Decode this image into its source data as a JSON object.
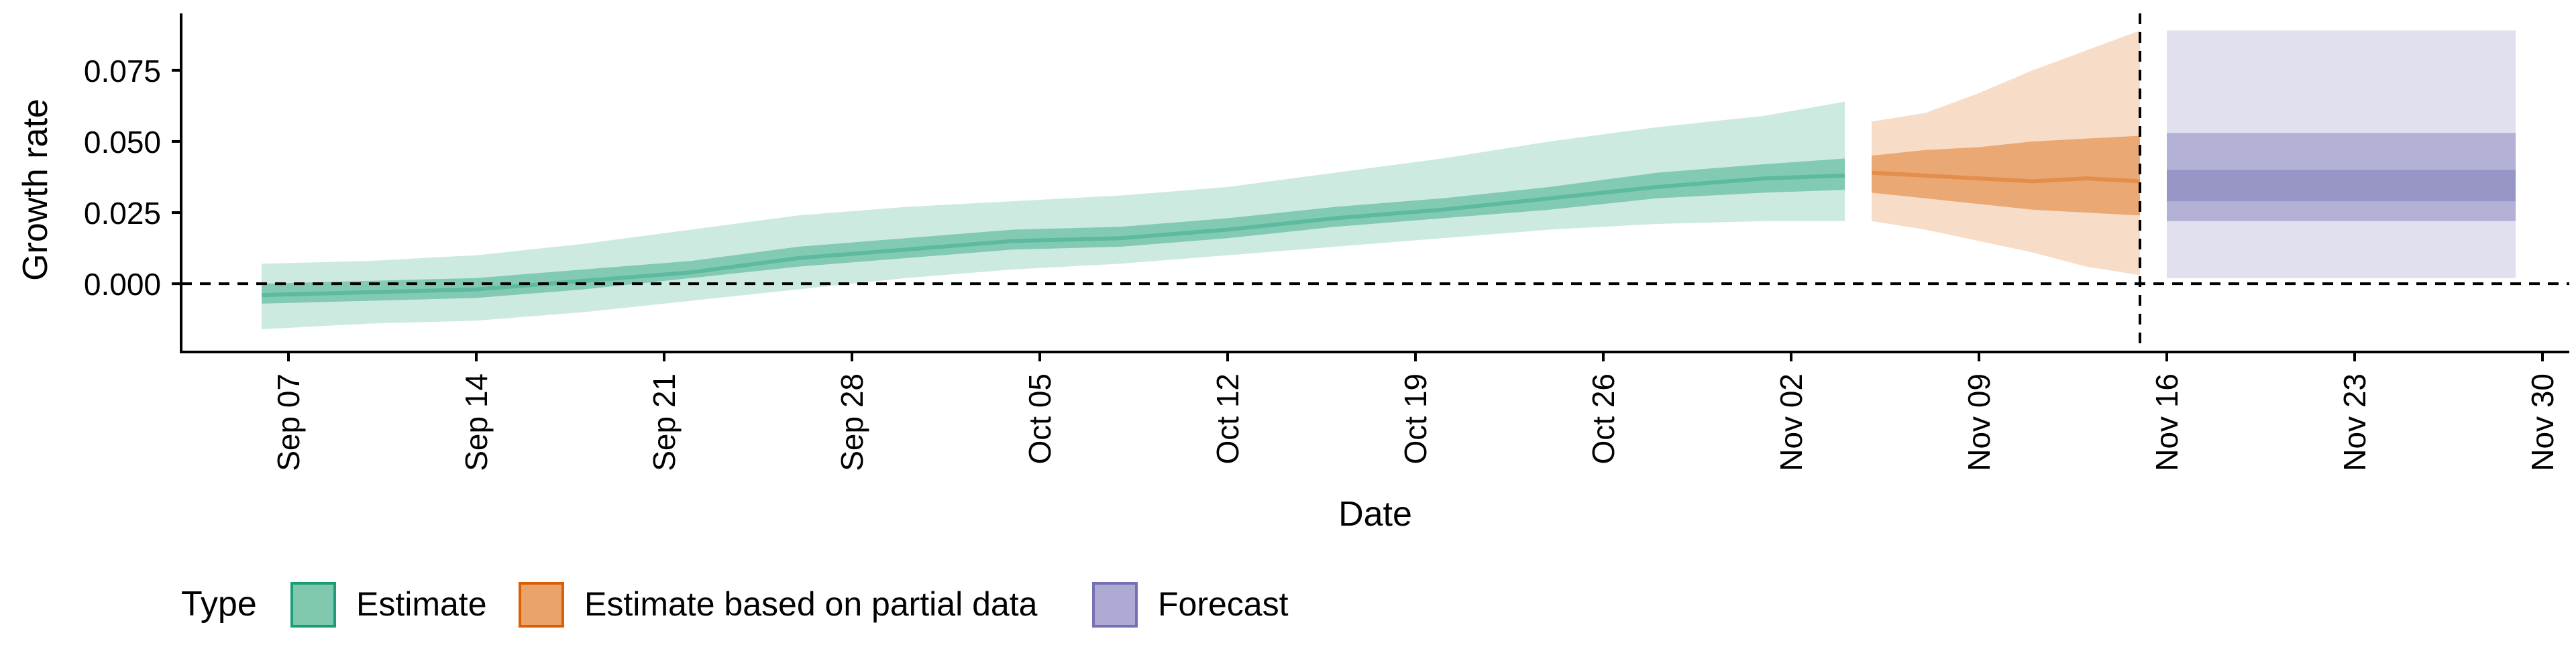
{
  "chart_data": {
    "type": "area",
    "xlabel": "Date",
    "ylabel": "Growth rate",
    "x_ticks": [
      "Sep 07",
      "Sep 14",
      "Sep 21",
      "Sep 28",
      "Oct 05",
      "Oct 12",
      "Oct 19",
      "Oct 26",
      "Nov 02",
      "Nov 09",
      "Nov 16",
      "Nov 23",
      "Nov 30"
    ],
    "y_ticks": [
      "0.000",
      "0.025",
      "0.050",
      "0.075"
    ],
    "ylim": [
      -0.024,
      0.095
    ],
    "xlim": [
      "2020-09-03",
      "2020-12-01"
    ],
    "reference_lines": {
      "y": 0.0,
      "x": "2020-11-15"
    },
    "legend": {
      "title": "Type",
      "position": "bottom",
      "entries": [
        {
          "label": "Estimate",
          "fill": "#7fc8ad",
          "stroke": "#1b9e77"
        },
        {
          "label": "Estimate based on partial data",
          "fill": "#eaa36b",
          "stroke": "#d95f02"
        },
        {
          "label": "Forecast",
          "fill": "#adaad4",
          "stroke": "#7570b3"
        }
      ]
    },
    "series": [
      {
        "name": "Estimate",
        "color": "#1b9e77",
        "x": [
          "2020-09-06",
          "2020-09-10",
          "2020-09-14",
          "2020-09-18",
          "2020-09-22",
          "2020-09-26",
          "2020-09-30",
          "2020-10-04",
          "2020-10-08",
          "2020-10-12",
          "2020-10-16",
          "2020-10-20",
          "2020-10-24",
          "2020-10-28",
          "2020-11-01",
          "2020-11-04"
        ],
        "median": [
          -0.004,
          -0.003,
          -0.002,
          0.001,
          0.004,
          0.009,
          0.012,
          0.015,
          0.016,
          0.019,
          0.023,
          0.026,
          0.03,
          0.034,
          0.037,
          0.038
        ],
        "lower_90": [
          -0.016,
          -0.014,
          -0.013,
          -0.01,
          -0.006,
          -0.002,
          0.002,
          0.005,
          0.007,
          0.01,
          0.013,
          0.016,
          0.019,
          0.021,
          0.022,
          0.022
        ],
        "upper_90": [
          0.007,
          0.008,
          0.01,
          0.014,
          0.019,
          0.024,
          0.027,
          0.029,
          0.031,
          0.034,
          0.039,
          0.044,
          0.05,
          0.055,
          0.059,
          0.064
        ],
        "lower_50": [
          -0.007,
          -0.006,
          -0.005,
          -0.002,
          0.002,
          0.006,
          0.009,
          0.012,
          0.013,
          0.016,
          0.02,
          0.023,
          0.026,
          0.03,
          0.032,
          0.033
        ],
        "upper_50": [
          0.0,
          0.001,
          0.002,
          0.005,
          0.008,
          0.013,
          0.016,
          0.019,
          0.02,
          0.023,
          0.027,
          0.03,
          0.034,
          0.039,
          0.042,
          0.044
        ]
      },
      {
        "name": "Estimate based on partial data",
        "color": "#d95f02",
        "x": [
          "2020-11-05",
          "2020-11-07",
          "2020-11-09",
          "2020-11-11",
          "2020-11-13",
          "2020-11-15"
        ],
        "median": [
          0.039,
          0.038,
          0.037,
          0.036,
          0.037,
          0.036
        ],
        "lower_90": [
          0.022,
          0.019,
          0.015,
          0.011,
          0.006,
          0.003
        ],
        "upper_90": [
          0.057,
          0.06,
          0.067,
          0.075,
          0.082,
          0.089
        ],
        "lower_50": [
          0.032,
          0.03,
          0.028,
          0.026,
          0.025,
          0.024
        ],
        "upper_50": [
          0.045,
          0.047,
          0.048,
          0.05,
          0.051,
          0.052
        ]
      },
      {
        "name": "Forecast",
        "color": "#7570b3",
        "x": [
          "2020-11-16",
          "2020-11-29"
        ],
        "median": [
          0.036,
          0.036
        ],
        "lower_90": [
          0.002,
          0.002
        ],
        "upper_90": [
          0.089,
          0.089
        ],
        "lower_50": [
          0.022,
          0.022
        ],
        "upper_50": [
          0.053,
          0.053
        ],
        "lower_20": [
          0.029,
          0.029
        ],
        "upper_20": [
          0.04,
          0.04
        ]
      }
    ]
  }
}
